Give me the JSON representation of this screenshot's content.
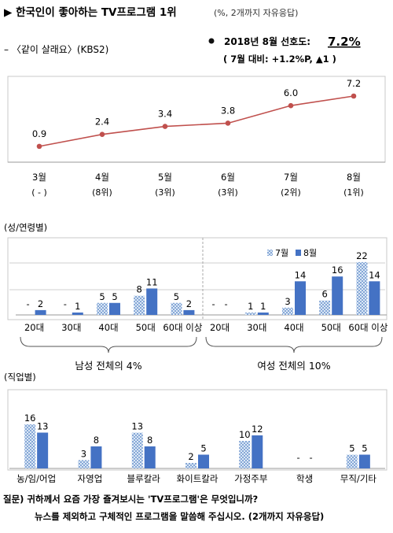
{
  "header": {
    "title": "▶ 한국인이 좋아하는 TV프로그램 1위",
    "title_note": "(%, 2개까지 자유응답)"
  },
  "program": {
    "label": "– 〈같이 살래요〉(KBS2)",
    "preference_label": "2018년 8월 선호도:",
    "preference_value": "7.2%",
    "change_note": "( 7월 대비: +1.2%P, ▲1 )"
  },
  "chart_data": [
    {
      "type": "line",
      "categories": [
        "3월",
        "4월",
        "5월",
        "6월",
        "7월",
        "8월"
      ],
      "ranks": [
        "( - )",
        "(8위)",
        "(3위)",
        "(3위)",
        "(2위)",
        "(1위)"
      ],
      "values": [
        0.9,
        2.4,
        3.4,
        3.8,
        6.0,
        7.2
      ],
      "value_labels": [
        "0.9",
        "2.4",
        "3.4",
        "3.8",
        "6.0",
        "7.2"
      ],
      "color": "#c0504d"
    },
    {
      "type": "bar",
      "title": "(성/연령별)",
      "categories": [
        "20대",
        "30대",
        "40대",
        "50대",
        "60대 이상",
        "20대",
        "30대",
        "40대",
        "50대",
        "60대 이상"
      ],
      "groups": [
        {
          "label": "남성 전체의 4%",
          "indices": [
            0,
            1,
            2,
            3,
            4
          ]
        },
        {
          "label": "여성 전체의 10%",
          "indices": [
            5,
            6,
            7,
            8,
            9
          ]
        }
      ],
      "series": [
        {
          "name": "7월",
          "values": [
            0,
            0,
            5,
            8,
            5,
            0,
            1,
            3,
            6,
            22
          ],
          "labels": [
            "-",
            "-",
            "5",
            "8",
            "5",
            "-",
            "1",
            "3",
            "6",
            "22"
          ]
        },
        {
          "name": "8월",
          "values": [
            2,
            1,
            5,
            11,
            2,
            0,
            1,
            14,
            16,
            14
          ],
          "labels": [
            "2",
            "1",
            "5",
            "11",
            "2",
            "-",
            "1",
            "14",
            "16",
            "14"
          ]
        }
      ],
      "ylim": [
        0,
        22
      ]
    },
    {
      "type": "bar",
      "title": "(직업별)",
      "categories": [
        "농/임/어업",
        "자영업",
        "블루칼라",
        "화이트칼라",
        "가정주부",
        "학생",
        "무직/기타"
      ],
      "series": [
        {
          "name": "7월",
          "values": [
            16,
            3,
            13,
            2,
            10,
            0,
            5
          ],
          "labels": [
            "16",
            "3",
            "13",
            "2",
            "10",
            "-",
            "5"
          ]
        },
        {
          "name": "8월",
          "values": [
            13,
            8,
            8,
            5,
            12,
            0,
            5
          ],
          "labels": [
            "13",
            "8",
            "8",
            "5",
            "12",
            "-",
            "5"
          ]
        }
      ],
      "ylim": [
        0,
        16
      ]
    }
  ],
  "footer": {
    "question": "질문) 귀하께서 요즘 가장 즐겨보시는 'TV프로그램'은 무엇입니까?",
    "question2": "뉴스를 제외하고 구체적인 프로그램을 말씀해 주십시오. (2개까지 자유응답)"
  },
  "colors": {
    "line": "#c0504d",
    "bar_july": "#9dc3e6",
    "bar_aug": "#4472c4",
    "grid": "#bfbfbf"
  }
}
